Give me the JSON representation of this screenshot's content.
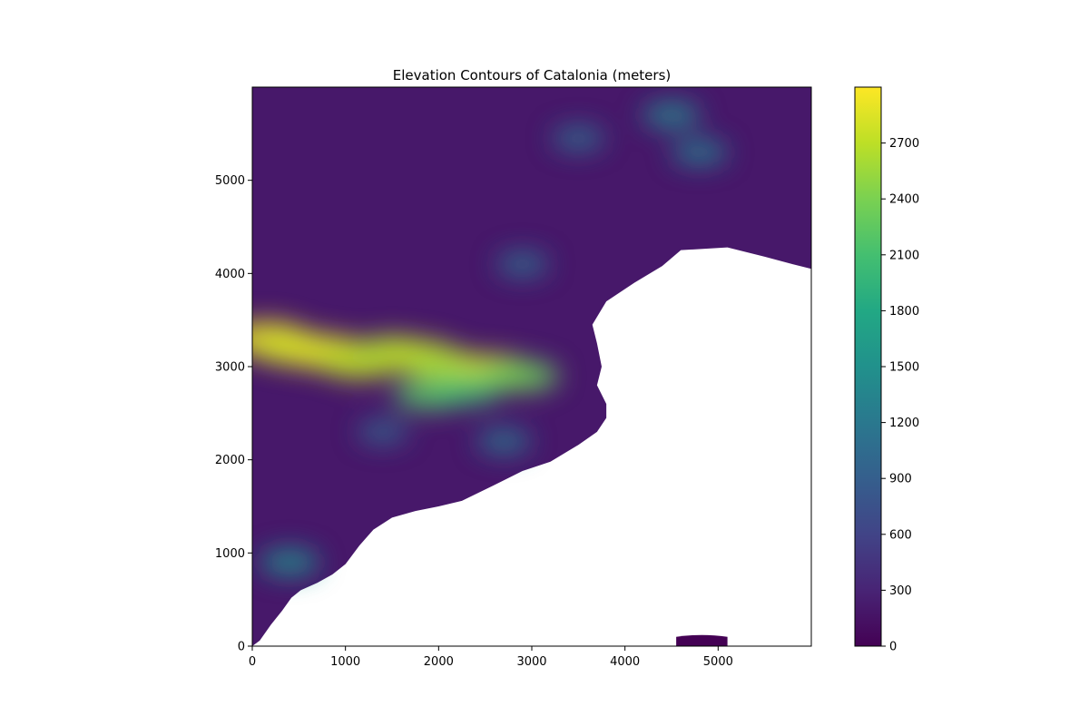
{
  "chart_data": {
    "type": "heatmap",
    "title": "Elevation Contours of Catalonia (meters)",
    "xlabel": "",
    "ylabel": "",
    "xlim": [
      0,
      6000
    ],
    "ylim": [
      0,
      6000
    ],
    "xticks": [
      0,
      1000,
      2000,
      3000,
      4000,
      5000
    ],
    "yticks": [
      0,
      1000,
      2000,
      3000,
      4000,
      5000
    ],
    "colorbar": {
      "colormap": "viridis",
      "range": [
        0,
        3000
      ],
      "ticks": [
        0,
        300,
        600,
        900,
        1200,
        1500,
        1800,
        2100,
        2400,
        2700
      ]
    },
    "colors": {
      "low": "#440154",
      "mid_low": "#3b528b",
      "mid": "#21918c",
      "mid_high": "#5ec962",
      "high": "#fde725",
      "sea": "#ffffff"
    },
    "grid": false,
    "coastline": [
      [
        0,
        0
      ],
      [
        80,
        60
      ],
      [
        200,
        230
      ],
      [
        320,
        380
      ],
      [
        420,
        520
      ],
      [
        520,
        600
      ],
      [
        700,
        680
      ],
      [
        860,
        770
      ],
      [
        1000,
        880
      ],
      [
        1150,
        1080
      ],
      [
        1300,
        1250
      ],
      [
        1500,
        1380
      ],
      [
        1750,
        1450
      ],
      [
        2000,
        1500
      ],
      [
        2250,
        1560
      ],
      [
        2600,
        1730
      ],
      [
        2900,
        1880
      ],
      [
        3200,
        1980
      ],
      [
        3500,
        2160
      ],
      [
        3700,
        2300
      ],
      [
        3800,
        2450
      ],
      [
        3800,
        2600
      ],
      [
        3700,
        2800
      ],
      [
        3750,
        3000
      ],
      [
        3700,
        3250
      ],
      [
        3650,
        3450
      ],
      [
        3800,
        3700
      ],
      [
        4100,
        3900
      ],
      [
        4400,
        4080
      ],
      [
        4600,
        4250
      ],
      [
        5100,
        4280
      ],
      [
        5500,
        4180
      ],
      [
        5800,
        4100
      ],
      [
        6000,
        4050
      ]
    ],
    "island": {
      "x": [
        4550,
        5100
      ],
      "y": [
        0,
        100
      ]
    },
    "ridges": [
      {
        "x": 150,
        "y": 3300,
        "value": 2900
      },
      {
        "x": 450,
        "y": 3200,
        "value": 2800
      },
      {
        "x": 800,
        "y": 3150,
        "value": 2850
      },
      {
        "x": 1150,
        "y": 3050,
        "value": 2700
      },
      {
        "x": 1500,
        "y": 3150,
        "value": 2650
      },
      {
        "x": 1800,
        "y": 3100,
        "value": 2700
      },
      {
        "x": 2100,
        "y": 3000,
        "value": 2600
      },
      {
        "x": 2550,
        "y": 2950,
        "value": 2750
      },
      {
        "x": 2900,
        "y": 2900,
        "value": 2300
      },
      {
        "x": 1900,
        "y": 2700,
        "value": 2200
      },
      {
        "x": 2300,
        "y": 2750,
        "value": 2100
      },
      {
        "x": 400,
        "y": 900,
        "value": 1500
      },
      {
        "x": 4500,
        "y": 5700,
        "value": 1400
      },
      {
        "x": 4800,
        "y": 5300,
        "value": 1300
      },
      {
        "x": 3500,
        "y": 5450,
        "value": 1100
      },
      {
        "x": 2900,
        "y": 4100,
        "value": 1100
      },
      {
        "x": 2700,
        "y": 2200,
        "value": 1200
      },
      {
        "x": 1400,
        "y": 2300,
        "value": 1000
      }
    ]
  }
}
